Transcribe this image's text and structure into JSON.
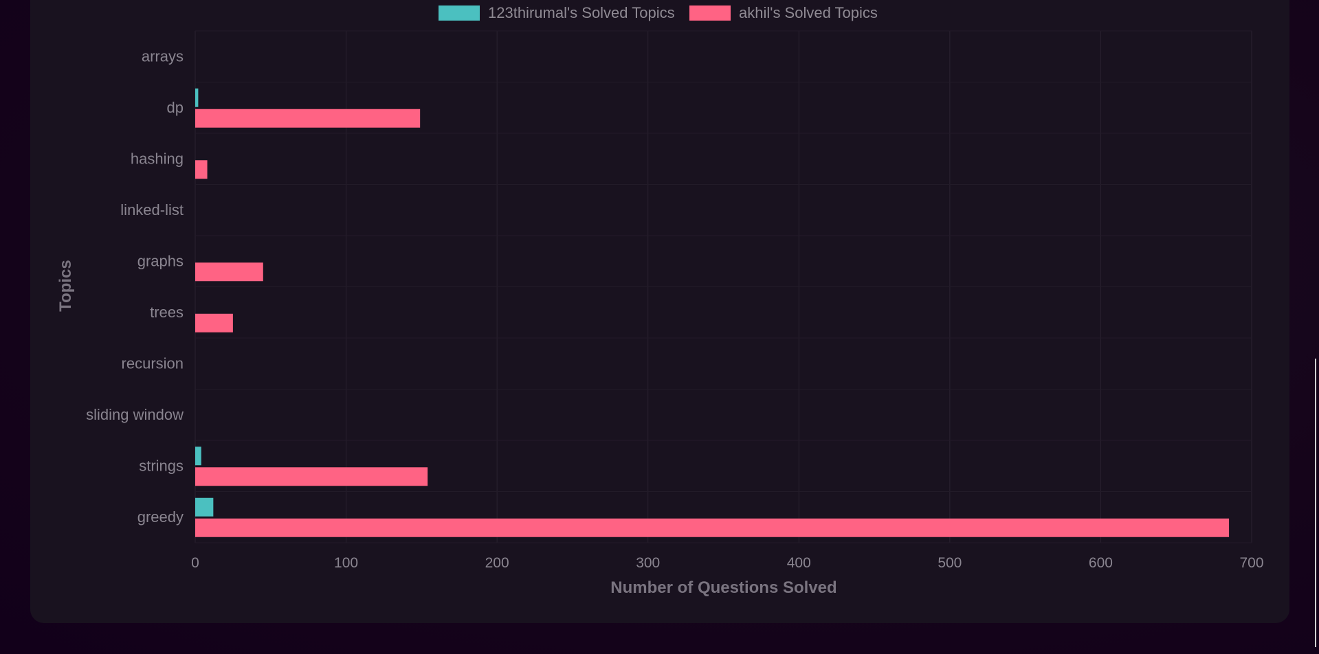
{
  "chart_data": {
    "type": "bar",
    "orientation": "horizontal",
    "categories": [
      "arrays",
      "dp",
      "hashing",
      "linked-list",
      "graphs",
      "trees",
      "recursion",
      "sliding window",
      "strings",
      "greedy"
    ],
    "series": [
      {
        "name": "123thirumal's Solved Topics",
        "color": "#4bc0c0",
        "values": [
          0,
          2,
          0,
          0,
          0,
          0,
          0,
          0,
          4,
          12
        ]
      },
      {
        "name": "akhil's Solved Topics",
        "color": "#ff6384",
        "values": [
          0,
          149,
          8,
          0,
          45,
          25,
          0,
          0,
          154,
          685
        ]
      }
    ],
    "xlabel": "Number of Questions Solved",
    "ylabel": "Topics",
    "xlim": [
      0,
      700
    ],
    "xticks": [
      "0",
      "100",
      "200",
      "300",
      "400",
      "500",
      "600",
      "700"
    ],
    "grid": true,
    "legend_position": "top"
  }
}
